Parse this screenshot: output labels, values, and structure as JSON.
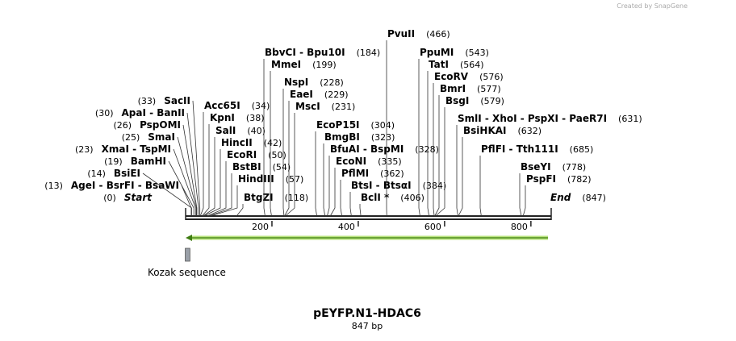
{
  "credit": "Created by SnapGene",
  "title": "pEYFP.N1-HDAC6",
  "length": 847,
  "length_label": "847 bp",
  "ruler_ticks": [
    200,
    400,
    600,
    800
  ],
  "start": {
    "label": "Start",
    "position": 0,
    "position_label": "(0)"
  },
  "end": {
    "label": "End",
    "position": 847,
    "position_label": "(847)"
  },
  "features": [
    {
      "label": "Kozak sequence",
      "start": 1,
      "end": 10
    }
  ],
  "enzymes": [
    {
      "label": "AgeI  - BsrFI  - BsaWI",
      "position": 13,
      "position_label": "(13)"
    },
    {
      "label": "BsiEI",
      "position": 14,
      "position_label": "(14)"
    },
    {
      "label": "BamHI",
      "position": 19,
      "position_label": "(19)"
    },
    {
      "label": "XmaI  - TspMI",
      "position": 23,
      "position_label": "(23)"
    },
    {
      "label": "SmaI",
      "position": 25,
      "position_label": "(25)"
    },
    {
      "label": "PspOMI",
      "position": 26,
      "position_label": "(26)"
    },
    {
      "label": "ApaI  - BanII",
      "position": 30,
      "position_label": "(30)"
    },
    {
      "label": "SacII",
      "position": 33,
      "position_label": "(33)"
    },
    {
      "label": "Acc65I",
      "position": 34,
      "position_label": "(34)"
    },
    {
      "label": "KpnI",
      "position": 38,
      "position_label": "(38)"
    },
    {
      "label": "SalI",
      "position": 40,
      "position_label": "(40)"
    },
    {
      "label": "HincII",
      "position": 42,
      "position_label": "(42)"
    },
    {
      "label": "EcoRI",
      "position": 50,
      "position_label": "(50)"
    },
    {
      "label": "BstBI",
      "position": 54,
      "position_label": "(54)"
    },
    {
      "label": "HindIII",
      "position": 57,
      "position_label": "(57)"
    },
    {
      "label": "BtgZI",
      "position": 118,
      "position_label": "(118)"
    },
    {
      "label": "BbvCI  - Bpu10I",
      "position": 184,
      "position_label": "(184)"
    },
    {
      "label": "MmeI",
      "position": 199,
      "position_label": "(199)"
    },
    {
      "label": "NspI",
      "position": 228,
      "position_label": "(228)"
    },
    {
      "label": "EaeI",
      "position": 229,
      "position_label": "(229)"
    },
    {
      "label": "MscI",
      "position": 231,
      "position_label": "(231)"
    },
    {
      "label": "EcoP15I",
      "position": 304,
      "position_label": "(304)"
    },
    {
      "label": "BmgBI",
      "position": 323,
      "position_label": "(323)"
    },
    {
      "label": "BfuAI  - BspMI",
      "position": 328,
      "position_label": "(328)"
    },
    {
      "label": "EcoNI",
      "position": 335,
      "position_label": "(335)"
    },
    {
      "label": "PflMI",
      "position": 362,
      "position_label": "(362)"
    },
    {
      "label": "BtsI  - BtsαI",
      "position": 384,
      "position_label": "(384)"
    },
    {
      "label": "BclI *",
      "position": 406,
      "position_label": "(406)"
    },
    {
      "label": "PvuII",
      "position": 466,
      "position_label": "(466)"
    },
    {
      "label": "PpuMI",
      "position": 543,
      "position_label": "(543)"
    },
    {
      "label": "TatI",
      "position": 564,
      "position_label": "(564)"
    },
    {
      "label": "EcoRV",
      "position": 576,
      "position_label": "(576)"
    },
    {
      "label": "BmrI",
      "position": 577,
      "position_label": "(577)"
    },
    {
      "label": "BsgI",
      "position": 579,
      "position_label": "(579)"
    },
    {
      "label": "SmlI  - XhoI  - PspXI  - PaeR7I",
      "position": 631,
      "position_label": "(631)"
    },
    {
      "label": "BsiHKAI",
      "position": 632,
      "position_label": "(632)"
    },
    {
      "label": "PflFI  - Tth111I",
      "position": 685,
      "position_label": "(685)"
    },
    {
      "label": "BseYI",
      "position": 778,
      "position_label": "(778)"
    },
    {
      "label": "PspFI",
      "position": 782,
      "position_label": "(782)"
    }
  ]
}
